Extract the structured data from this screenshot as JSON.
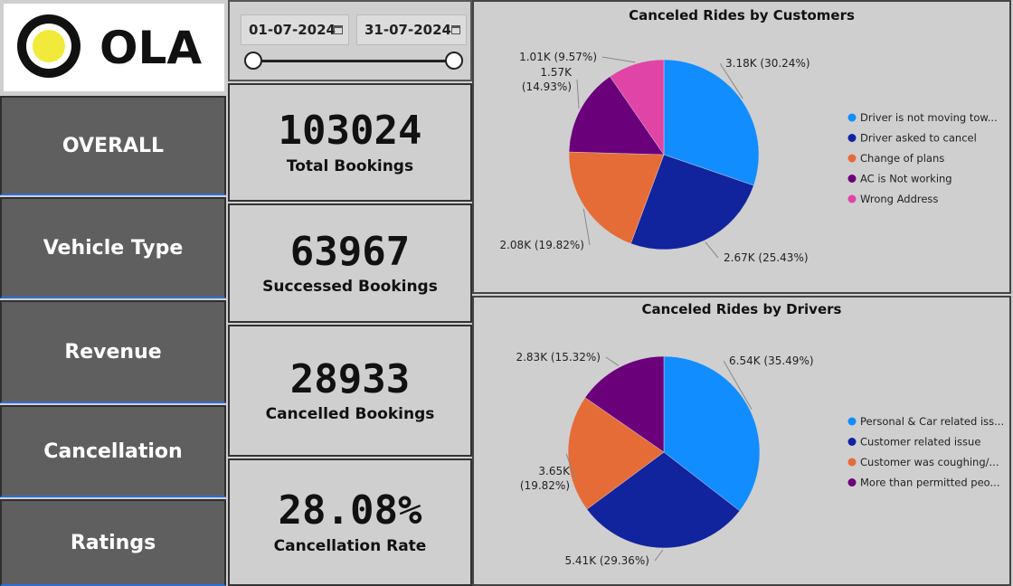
{
  "brand": {
    "name": "OLA"
  },
  "nav": [
    {
      "label": "OVERALL"
    },
    {
      "label": "Vehicle Type"
    },
    {
      "label": "Revenue"
    },
    {
      "label": "Cancellation"
    },
    {
      "label": "Ratings"
    }
  ],
  "date_range": {
    "start": "01-07-2024",
    "end": "31-07-2024"
  },
  "kpis": [
    {
      "value": "103024",
      "label": "Total Bookings"
    },
    {
      "value": "63967",
      "label": "Successed Bookings"
    },
    {
      "value": "28933",
      "label": "Cancelled Bookings"
    },
    {
      "value": "28.08%",
      "label": "Cancellation Rate"
    }
  ],
  "colors": {
    "blue": "#118dff",
    "navy": "#12239e",
    "orange": "#e66c37",
    "purple": "#6b007b",
    "pink": "#e044a7"
  },
  "chart_data": [
    {
      "type": "pie",
      "title": "Canceled Rides by Customers",
      "categories": [
        "Driver is not moving tow...",
        "Driver asked to cancel",
        "Change of plans",
        "AC is Not working",
        "Wrong Address"
      ],
      "values": [
        3180,
        2670,
        2080,
        1570,
        1010
      ],
      "percents": [
        30.24,
        25.43,
        19.82,
        14.93,
        9.57
      ],
      "data_labels": [
        "3.18K (30.24%)",
        "2.67K (25.43%)",
        "2.08K (19.82%)",
        "1.57K (14.93%)",
        "1.01K (9.57%)"
      ],
      "colors": [
        "#118dff",
        "#12239e",
        "#e66c37",
        "#6b007b",
        "#e044a7"
      ],
      "legend_position": "right"
    },
    {
      "type": "pie",
      "title": "Canceled Rides by Drivers",
      "categories": [
        "Personal & Car related iss...",
        "Customer related issue",
        "Customer was coughing/...",
        "More than permitted peo..."
      ],
      "values": [
        6540,
        5410,
        3650,
        2830
      ],
      "percents": [
        35.49,
        29.36,
        19.82,
        15.32
      ],
      "data_labels": [
        "6.54K (35.49%)",
        "5.41K (29.36%)",
        "3.65K (19.82%)",
        "2.83K (15.32%)"
      ],
      "colors": [
        "#118dff",
        "#12239e",
        "#e66c37",
        "#6b007b"
      ],
      "legend_position": "right"
    }
  ]
}
